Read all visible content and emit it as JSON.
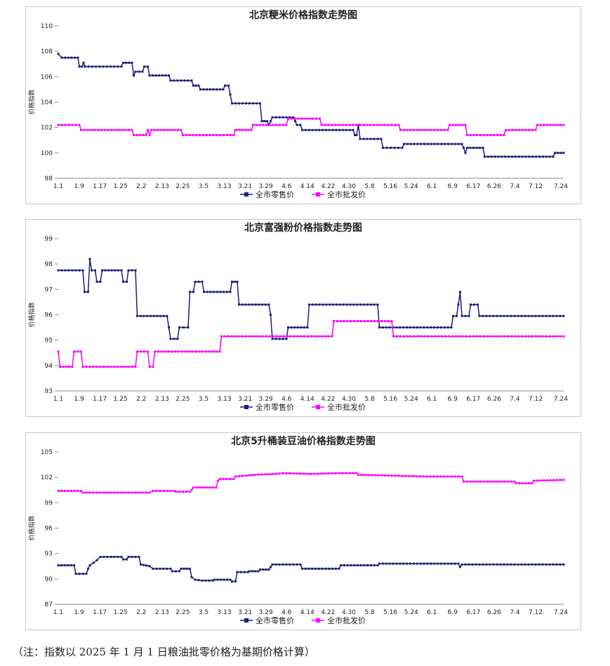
{
  "legend_labels": {
    "retail": "全市零售价",
    "wholesale": "全市批发价"
  },
  "colors": {
    "retail": "#1a1f7a",
    "wholesale": "#ff00ff",
    "axis": "#888888",
    "text": "#222222"
  },
  "x_ticks": [
    "1.1",
    "1.9",
    "1.17",
    "1.25",
    "2.2",
    "2.13",
    "2.25",
    "3.5",
    "3.13",
    "3.21",
    "3.29",
    "4.6",
    "4.14",
    "4.22",
    "4.30",
    "5.8",
    "5.16",
    "5.24",
    "6.1",
    "6.9",
    "6.17",
    "6.26",
    "7.4",
    "7.12",
    "7.24"
  ],
  "note": "（注：指数以 2025 年 1 月 1 日粮油批零价格为基期价格计算）",
  "chart_data": [
    {
      "type": "line",
      "title": "北京粳米价格指数走势图",
      "ylabel": "价格指数",
      "ylim": [
        98,
        110
      ],
      "yticks": [
        98,
        100,
        102,
        104,
        106,
        108,
        110
      ],
      "series": [
        {
          "name": "全市零售价",
          "points": [
            [
              0,
              107.8
            ],
            [
              1,
              107.5
            ],
            [
              5.6,
              107.5
            ],
            [
              6,
              106.8
            ],
            [
              6.8,
              106.8
            ],
            [
              7.2,
              107.1
            ],
            [
              7.6,
              106.8
            ],
            [
              18,
              106.8
            ],
            [
              18.5,
              107.1
            ],
            [
              21,
              107.1
            ],
            [
              21.5,
              106.1
            ],
            [
              22,
              106.4
            ],
            [
              24,
              106.4
            ],
            [
              24.5,
              106.8
            ],
            [
              25.5,
              106.8
            ],
            [
              26,
              106.1
            ],
            [
              31.5,
              106.1
            ],
            [
              32,
              105.7
            ],
            [
              38,
              105.7
            ],
            [
              38.5,
              105.3
            ],
            [
              40,
              105.3
            ],
            [
              40.5,
              105
            ],
            [
              47,
              105
            ],
            [
              47.5,
              105.3
            ],
            [
              48.5,
              105.3
            ],
            [
              49,
              104.6
            ],
            [
              49.5,
              103.9
            ],
            [
              57.5,
              103.9
            ],
            [
              58,
              102.5
            ],
            [
              59.5,
              102.5
            ],
            [
              60,
              102.2
            ],
            [
              60.5,
              102.5
            ],
            [
              61,
              102.8
            ],
            [
              67,
              102.8
            ],
            [
              67.5,
              102.5
            ],
            [
              68,
              102.2
            ],
            [
              69,
              102.2
            ],
            [
              69.5,
              101.8
            ],
            [
              84,
              101.8
            ],
            [
              84.5,
              101.4
            ],
            [
              85,
              101.4
            ],
            [
              85.5,
              102.2
            ],
            [
              86,
              101.1
            ],
            [
              92,
              101.1
            ],
            [
              92.5,
              100.4
            ],
            [
              98,
              100.4
            ],
            [
              98.5,
              100.7
            ],
            [
              115,
              100.7
            ],
            [
              115.5,
              100.4
            ],
            [
              116,
              100
            ],
            [
              116.5,
              100.4
            ],
            [
              121,
              100.4
            ],
            [
              121.5,
              99.7
            ],
            [
              141,
              99.7
            ],
            [
              141.5,
              100
            ],
            [
              144,
              100
            ]
          ]
        },
        {
          "name": "全市批发价",
          "points": [
            [
              0,
              102.2
            ],
            [
              6,
              102.2
            ],
            [
              6.5,
              101.8
            ],
            [
              21,
              101.8
            ],
            [
              21.5,
              101.4
            ],
            [
              25,
              101.4
            ],
            [
              25.5,
              101.8
            ],
            [
              26,
              101.4
            ],
            [
              26.5,
              101.8
            ],
            [
              35,
              101.8
            ],
            [
              35.5,
              101.4
            ],
            [
              50,
              101.4
            ],
            [
              50.5,
              101.8
            ],
            [
              55,
              101.8
            ],
            [
              55.5,
              102.2
            ],
            [
              65,
              102.2
            ],
            [
              65.5,
              102.7
            ],
            [
              74.5,
              102.7
            ],
            [
              75,
              102.2
            ],
            [
              97,
              102.2
            ],
            [
              97.5,
              101.8
            ],
            [
              111,
              101.8
            ],
            [
              111.5,
              102.2
            ],
            [
              116,
              102.2
            ],
            [
              116.5,
              101.4
            ],
            [
              127,
              101.4
            ],
            [
              127.5,
              101.8
            ],
            [
              136,
              101.8
            ],
            [
              136.5,
              102.2
            ],
            [
              144,
              102.2
            ]
          ]
        }
      ]
    },
    {
      "type": "line",
      "title": "北京富强粉价格指数走势图",
      "ylabel": "价格指数",
      "ylim": [
        93,
        99
      ],
      "yticks": [
        93,
        94,
        95,
        96,
        97,
        98,
        99
      ],
      "series": [
        {
          "name": "全市零售价",
          "points": [
            [
              0,
              97.75
            ],
            [
              7,
              97.75
            ],
            [
              7.5,
              96.9
            ],
            [
              8.5,
              96.9
            ],
            [
              9,
              98.2
            ],
            [
              9.5,
              97.75
            ],
            [
              10.5,
              97.75
            ],
            [
              11,
              97.3
            ],
            [
              12,
              97.3
            ],
            [
              12.5,
              97.75
            ],
            [
              18,
              97.75
            ],
            [
              18.5,
              97.3
            ],
            [
              19.5,
              97.3
            ],
            [
              20,
              97.75
            ],
            [
              22,
              97.75
            ],
            [
              22.5,
              95.95
            ],
            [
              31,
              95.95
            ],
            [
              31.5,
              95.5
            ],
            [
              32,
              95.05
            ],
            [
              34,
              95.05
            ],
            [
              34.5,
              95.5
            ],
            [
              37,
              95.5
            ],
            [
              37.5,
              96.9
            ],
            [
              38.5,
              96.9
            ],
            [
              39,
              97.3
            ],
            [
              41,
              97.3
            ],
            [
              41.5,
              96.9
            ],
            [
              49,
              96.9
            ],
            [
              49.5,
              97.3
            ],
            [
              51,
              97.3
            ],
            [
              51.5,
              96.4
            ],
            [
              60,
              96.4
            ],
            [
              60.5,
              96
            ],
            [
              61,
              95.05
            ],
            [
              65,
              95.05
            ],
            [
              65.5,
              95.5
            ],
            [
              71,
              95.5
            ],
            [
              71.5,
              96.4
            ],
            [
              91,
              96.4
            ],
            [
              91.5,
              95.5
            ],
            [
              112,
              95.5
            ],
            [
              112.5,
              95.95
            ],
            [
              113.5,
              95.95
            ],
            [
              114,
              96.4
            ],
            [
              114.5,
              96.9
            ],
            [
              115,
              95.95
            ],
            [
              117,
              95.95
            ],
            [
              117.5,
              96.4
            ],
            [
              119.5,
              96.4
            ],
            [
              120,
              95.95
            ],
            [
              144,
              95.95
            ]
          ]
        },
        {
          "name": "全市批发价",
          "points": [
            [
              0,
              94.55
            ],
            [
              0.5,
              93.95
            ],
            [
              4,
              93.95
            ],
            [
              4.5,
              94.55
            ],
            [
              6.5,
              94.55
            ],
            [
              7,
              93.95
            ],
            [
              22,
              93.95
            ],
            [
              22.5,
              94.55
            ],
            [
              25.5,
              94.55
            ],
            [
              26,
              93.95
            ],
            [
              27,
              93.95
            ],
            [
              27.5,
              94.55
            ],
            [
              46,
              94.55
            ],
            [
              46.5,
              95.15
            ],
            [
              78,
              95.15
            ],
            [
              78.5,
              95.75
            ],
            [
              95,
              95.75
            ],
            [
              95.5,
              95.15
            ],
            [
              144,
              95.15
            ]
          ]
        }
      ]
    },
    {
      "type": "line",
      "title": "北京5升桶装豆油价格指数走势图",
      "ylabel": "价格指数",
      "ylim": [
        87,
        105
      ],
      "yticks": [
        87,
        90,
        93,
        96,
        99,
        102,
        105
      ],
      "series": [
        {
          "name": "全市零售价",
          "points": [
            [
              0,
              91.6
            ],
            [
              4.5,
              91.6
            ],
            [
              5,
              90.6
            ],
            [
              8,
              90.6
            ],
            [
              8.5,
              91.2
            ],
            [
              9,
              91.6
            ],
            [
              10,
              91.9
            ],
            [
              11,
              92.2
            ],
            [
              12,
              92.6
            ],
            [
              18,
              92.6
            ],
            [
              18.5,
              92.3
            ],
            [
              19.5,
              92.3
            ],
            [
              20,
              92.6
            ],
            [
              23,
              92.6
            ],
            [
              23.5,
              91.7
            ],
            [
              26,
              91.5
            ],
            [
              27,
              91.2
            ],
            [
              32,
              91.2
            ],
            [
              32.5,
              90.9
            ],
            [
              34.5,
              90.9
            ],
            [
              35,
              91.2
            ],
            [
              37.5,
              91.2
            ],
            [
              38,
              90.2
            ],
            [
              39,
              89.9
            ],
            [
              41,
              89.8
            ],
            [
              44,
              89.8
            ],
            [
              44.5,
              89.9
            ],
            [
              49,
              89.9
            ],
            [
              49.5,
              89.7
            ],
            [
              50.5,
              89.7
            ],
            [
              51,
              90.8
            ],
            [
              54,
              90.8
            ],
            [
              54.5,
              90.9
            ],
            [
              57,
              90.9
            ],
            [
              57.5,
              91.1
            ],
            [
              60,
              91.1
            ],
            [
              60.5,
              91.4
            ],
            [
              61,
              91.7
            ],
            [
              69,
              91.7
            ],
            [
              69.5,
              91.2
            ],
            [
              80,
              91.2
            ],
            [
              80.5,
              91.6
            ],
            [
              91,
              91.6
            ],
            [
              91.5,
              91.8
            ],
            [
              114,
              91.8
            ],
            [
              114.5,
              91.4
            ],
            [
              115,
              91.7
            ],
            [
              144,
              91.7
            ]
          ]
        },
        {
          "name": "全市批发价",
          "points": [
            [
              0,
              100.4
            ],
            [
              6.5,
              100.4
            ],
            [
              7,
              100.2
            ],
            [
              26,
              100.2
            ],
            [
              27,
              100.4
            ],
            [
              33,
              100.4
            ],
            [
              33.5,
              100.3
            ],
            [
              37.5,
              100.3
            ],
            [
              38,
              100.5
            ],
            [
              38.5,
              100.8
            ],
            [
              45,
              100.8
            ],
            [
              45.5,
              101.6
            ],
            [
              46,
              101.8
            ],
            [
              50,
              101.8
            ],
            [
              50.5,
              102.1
            ],
            [
              53.5,
              102.2
            ],
            [
              56,
              102.3
            ],
            [
              62,
              102.4
            ],
            [
              64,
              102.5
            ],
            [
              72,
              102.4
            ],
            [
              80,
              102.5
            ],
            [
              85,
              102.5
            ],
            [
              85.5,
              102.3
            ],
            [
              95,
              102.2
            ],
            [
              105,
              102.1
            ],
            [
              115,
              102.1
            ],
            [
              115.5,
              101.5
            ],
            [
              130,
              101.5
            ],
            [
              130.5,
              101.3
            ],
            [
              135,
              101.3
            ],
            [
              135.5,
              101.6
            ],
            [
              144,
              101.7
            ]
          ]
        }
      ]
    }
  ]
}
